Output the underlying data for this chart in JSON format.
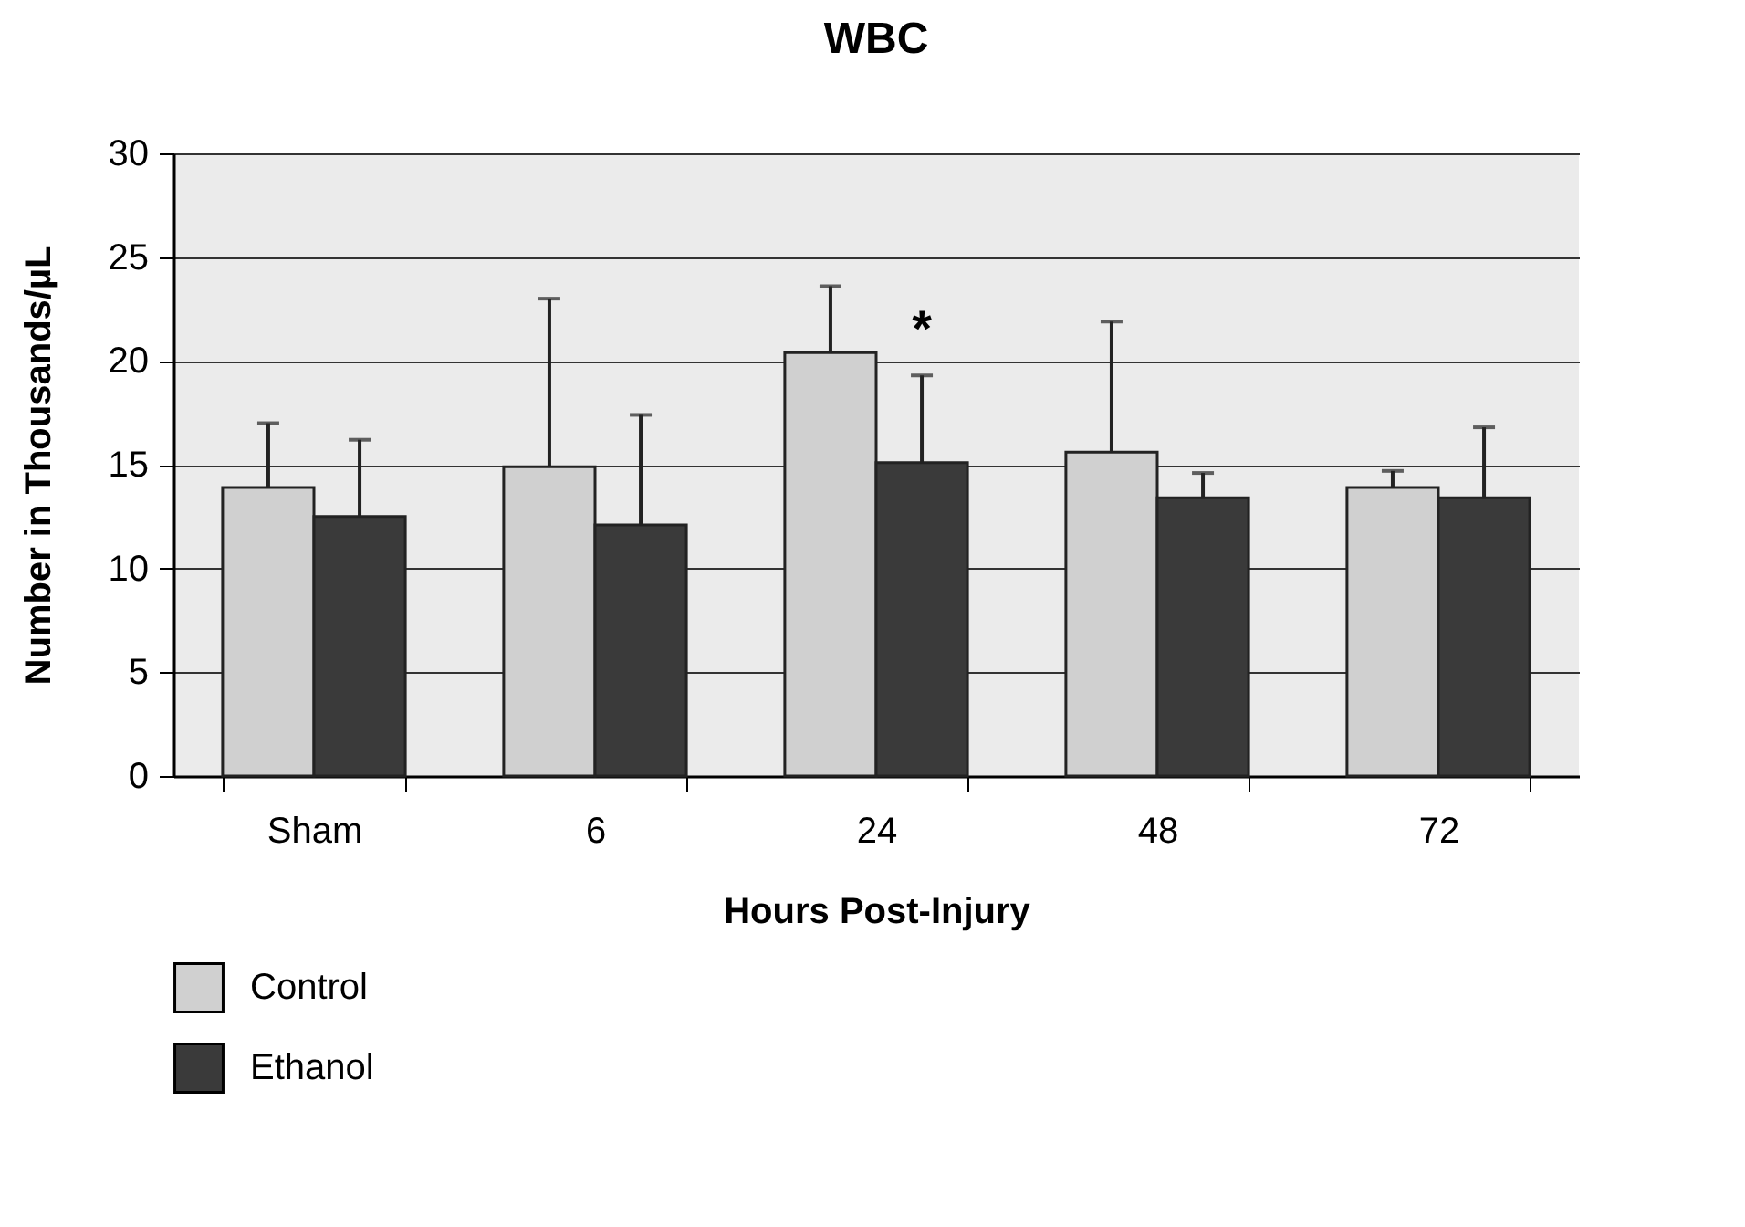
{
  "chart_data": {
    "type": "bar",
    "title": "WBC",
    "xlabel": "Hours Post-Injury",
    "ylabel": "Number in Thousands/µL",
    "categories": [
      "Sham",
      "6",
      "24",
      "48",
      "72"
    ],
    "series": [
      {
        "name": "Control",
        "color": "#d0d0d0",
        "values": [
          13.9,
          14.9,
          20.4,
          15.6,
          13.9
        ],
        "errors": [
          [
            13.9,
            17.0
          ],
          [
            14.9,
            23.0
          ],
          [
            20.4,
            23.6
          ],
          [
            15.6,
            21.9
          ],
          [
            13.9,
            14.7
          ]
        ]
      },
      {
        "name": "Ethanol",
        "color": "#3a3a3a",
        "values": [
          12.5,
          12.1,
          15.1,
          13.4,
          13.4
        ],
        "errors": [
          [
            12.5,
            16.2
          ],
          [
            12.1,
            17.4
          ],
          [
            15.1,
            19.3
          ],
          [
            13.4,
            14.6
          ],
          [
            13.4,
            16.8
          ]
        ]
      }
    ],
    "annotations": [
      {
        "text": "*",
        "x": "24",
        "y": 19.3
      }
    ],
    "ylim": [
      0,
      30
    ],
    "yticks": [
      0,
      5,
      10,
      15,
      20,
      25,
      30
    ],
    "grid": "y",
    "legend": "bottom left"
  }
}
